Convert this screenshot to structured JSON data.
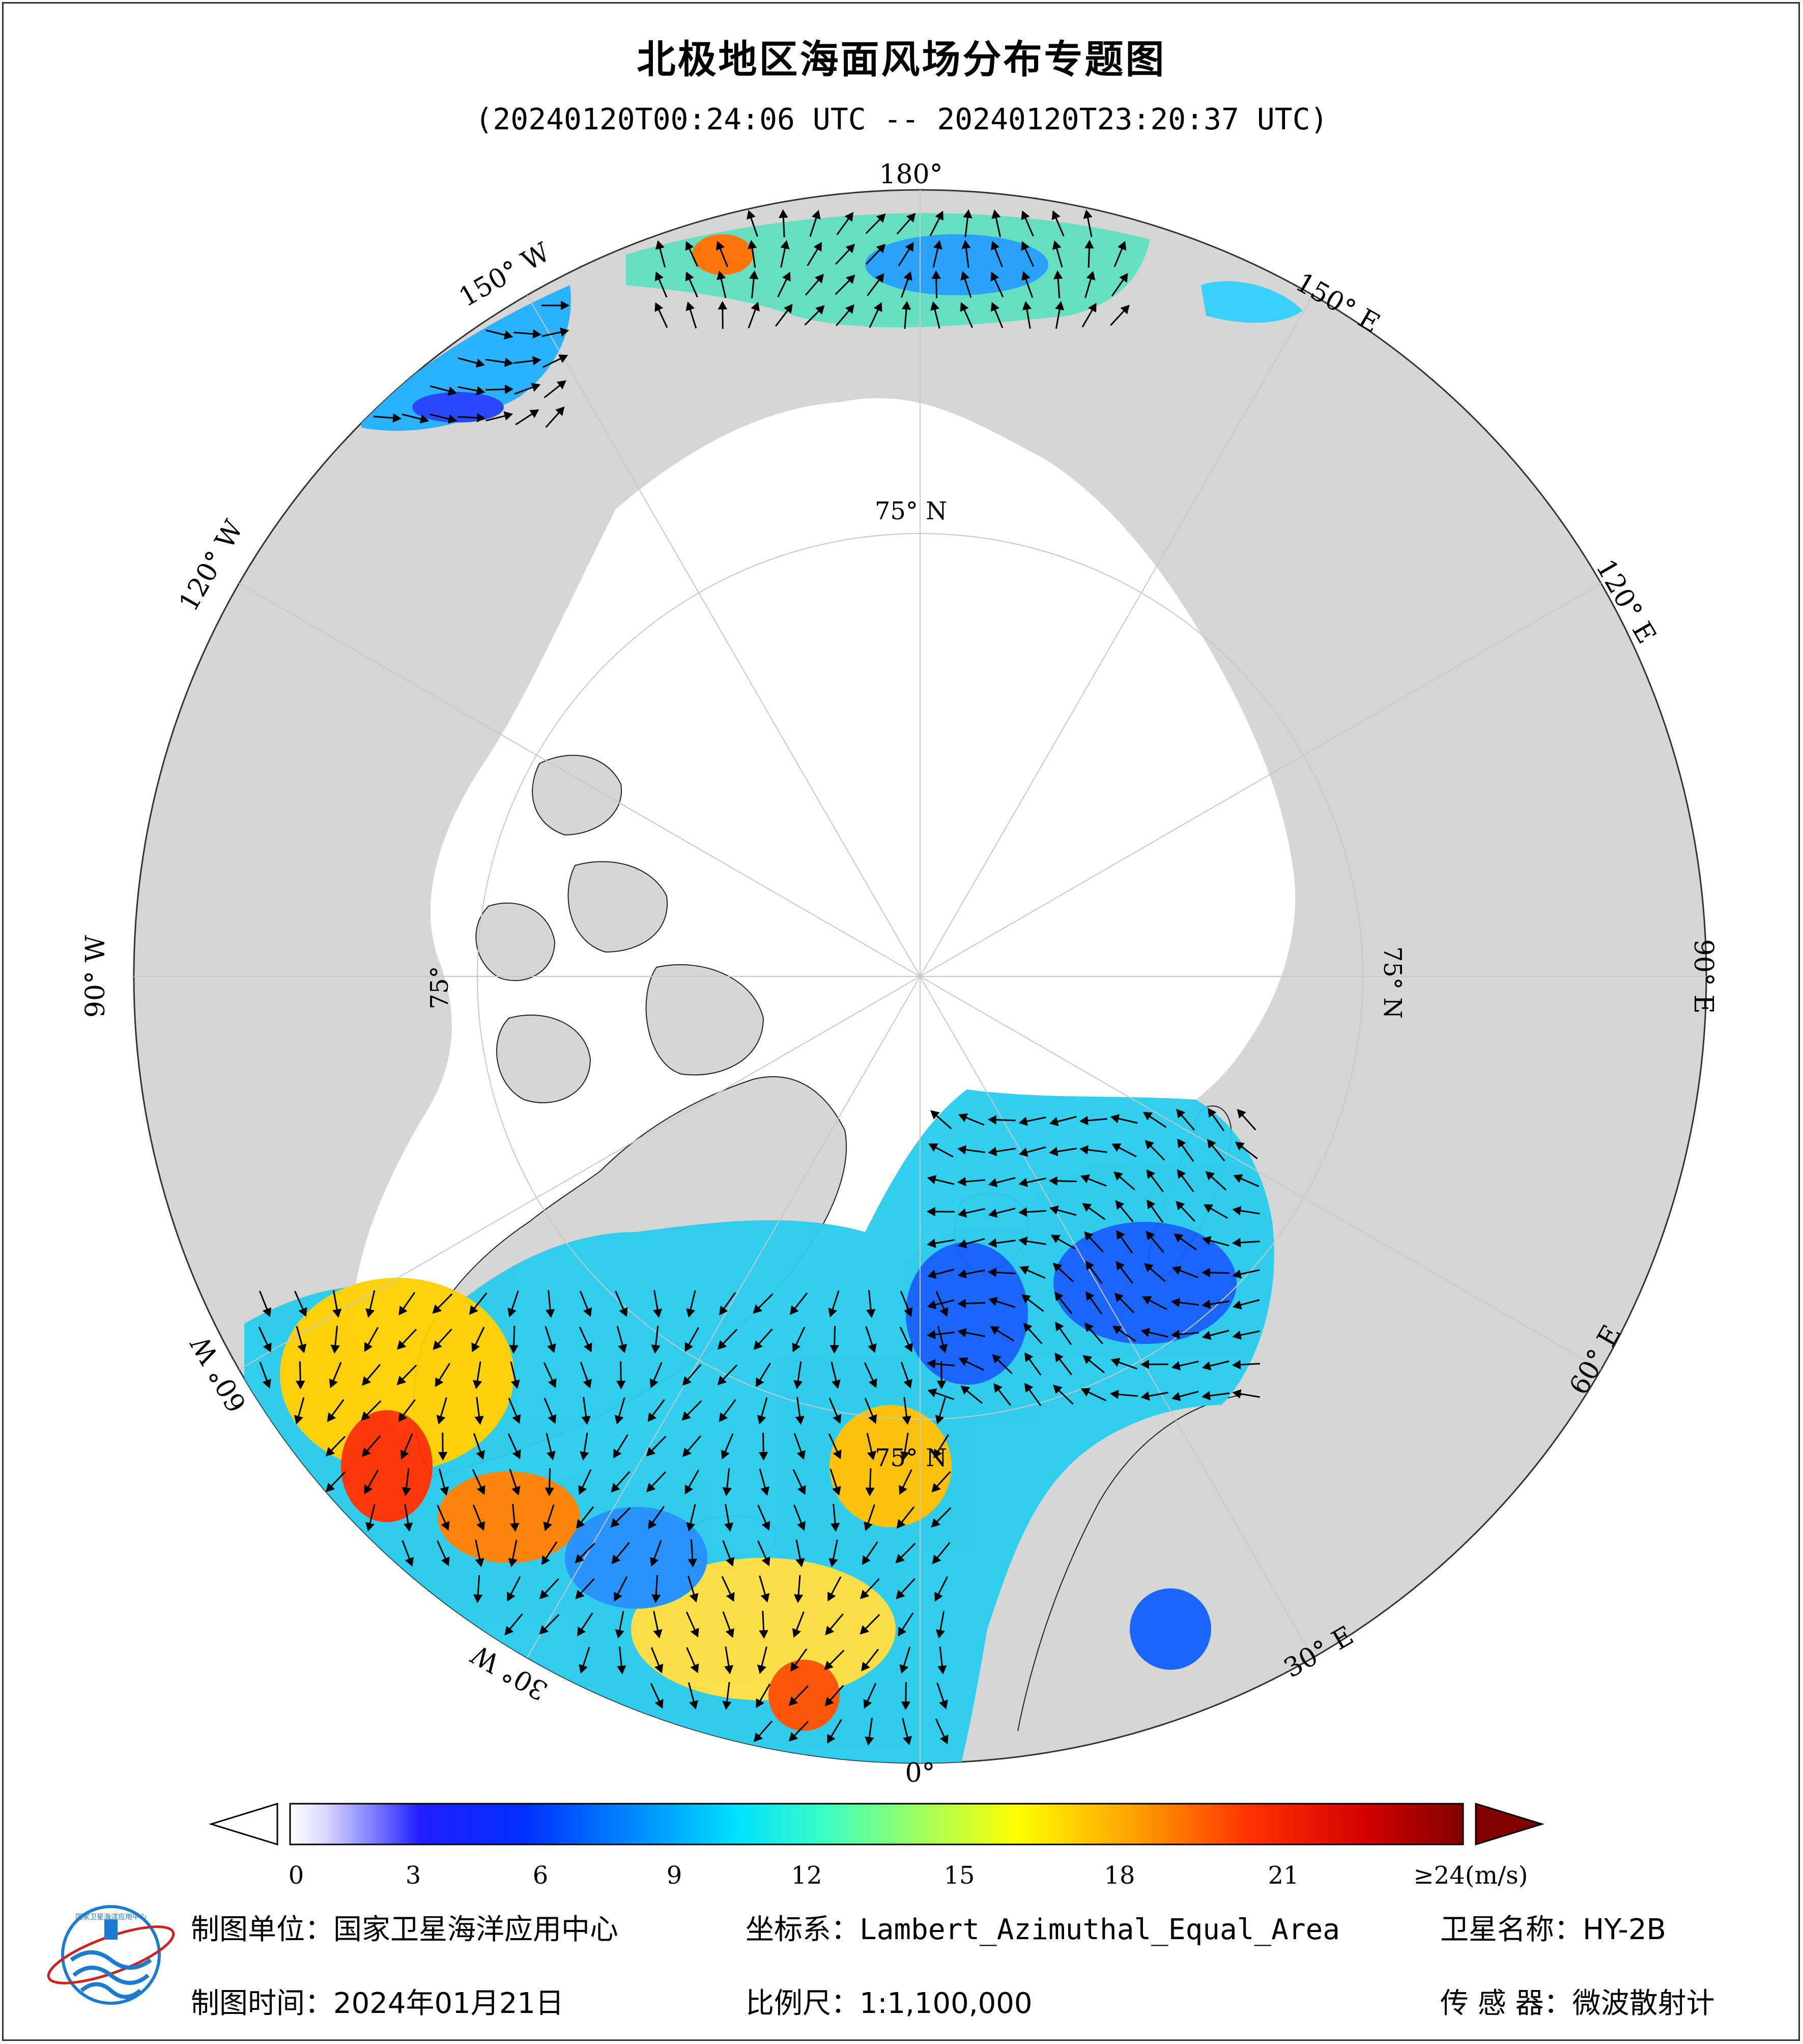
{
  "header": {
    "title": "北极地区海面风场分布专题图",
    "time_range": "(20240120T00:24:06 UTC -- 20240120T23:20:37 UTC)"
  },
  "map": {
    "projection_label": "Lambert_Azimuthal_Equal_Area",
    "longitude_labels": [
      "180°",
      "150° E",
      "120° E",
      "90° E",
      "60° E",
      "30° E",
      "0°",
      "30° W",
      "60° W",
      "90° W",
      "120° W",
      "150° W"
    ],
    "latitude_labels": [
      "75° N",
      "75° N",
      "75° N",
      "75°"
    ],
    "colors": {
      "land": "#d6d6d6",
      "sea_ice": "#ffffff",
      "outer_disc": "#d9d9d9",
      "graticule": "#c8c8c8",
      "arrow": "#000000"
    }
  },
  "colorbar": {
    "tick_labels": [
      "0",
      "3",
      "6",
      "9",
      "12",
      "15",
      "18",
      "21",
      "≥24(m/s)"
    ],
    "colors": [
      "#ffffff",
      "#c8c8ff",
      "#4040ff",
      "#0050ff",
      "#00a0ff",
      "#00ffff",
      "#80ff80",
      "#ffff00",
      "#ff9000",
      "#ff2000",
      "#800000"
    ],
    "under_color": "#ffffff",
    "over_color": "#800000"
  },
  "footer": {
    "unit_label": "制图单位：国家卫星海洋应用中心",
    "crs_label": "坐标系：Lambert_Azimuthal_Equal_Area",
    "satellite_label": "卫星名称：HY-2B",
    "date_label": "制图时间：2024年01月21日",
    "scale_label": "比例尺：1:1,100,000",
    "sensor_label": "传 感 器：微波散射计"
  },
  "logo": {
    "text": "国家卫星海洋应用中心"
  }
}
